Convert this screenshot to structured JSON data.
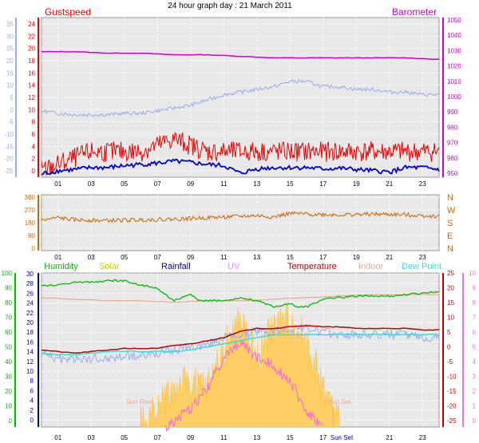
{
  "title": "24 hour graph day : 21 March 2011",
  "colors": {
    "gust": "#ee0000",
    "wind": "#0000cc",
    "baro": "#cc00cc",
    "temp_axis": "#99aaee",
    "dir": "#cc6600",
    "humidity": "#00bb00",
    "solar": "#ffcc55",
    "solar_text": "#cccc00",
    "rain": "#000099",
    "uv": "#ee77cc",
    "uv_text": "#ee88ee",
    "temperature": "#bb0000",
    "indoor": "#f0a890",
    "dewpoint": "#33dddd",
    "panel": "#e8e8e8"
  },
  "chart_data": [
    {
      "type": "line",
      "name": "wind-panel",
      "labels": {
        "left": "Gustspeed",
        "right": "Barometer"
      },
      "x_ticks": [
        "01",
        "03",
        "05",
        "07",
        "09",
        "11",
        "13",
        "15",
        "17",
        "19",
        "21",
        "23"
      ],
      "outer_left_ticks": [
        "35",
        "30",
        "25",
        "20",
        "15",
        "10",
        "5",
        "0",
        "-5",
        "-10",
        "-15",
        "-20",
        "-25"
      ],
      "left_ticks": [
        "24",
        "22",
        "20",
        "18",
        "16",
        "14",
        "12",
        "10",
        "8",
        "6",
        "4",
        "2",
        "0"
      ],
      "right_ticks": [
        "1050",
        "1040",
        "1030",
        "1020",
        "1010",
        "1000",
        "990",
        "980",
        "970",
        "960",
        "950"
      ],
      "ylim_left": [
        0,
        25
      ],
      "ylim_right": [
        947,
        1050
      ],
      "ylim_outer": [
        -25,
        35
      ],
      "series": {
        "barometer": {
          "x": [
            0,
            2,
            4,
            6,
            8,
            10,
            12,
            14,
            16,
            18,
            20,
            22,
            24
          ],
          "y": [
            1028,
            1028,
            1027,
            1027,
            1026,
            1026,
            1025,
            1024,
            1024,
            1024,
            1024,
            1024,
            1023
          ]
        },
        "temperature": {
          "x": [
            0,
            1,
            2,
            3,
            4,
            5,
            6,
            7,
            8,
            9,
            10,
            11,
            12,
            13,
            14,
            15,
            16,
            17,
            18,
            19,
            20,
            21,
            22,
            23,
            24
          ],
          "y": [
            0,
            -1,
            -1.5,
            -1.5,
            -1.5,
            -1,
            -1,
            0,
            1,
            2,
            4,
            6,
            7,
            8,
            9,
            11,
            11,
            9,
            9,
            8,
            8,
            7,
            7,
            6,
            6
          ]
        },
        "gust": {
          "x": [
            0,
            1,
            2,
            3,
            4,
            5,
            6,
            7,
            8,
            9,
            10,
            11,
            12,
            13,
            14,
            15,
            16,
            17,
            18,
            19,
            20,
            21,
            22,
            23,
            24
          ],
          "y": [
            1,
            2,
            3,
            4,
            4,
            4,
            4,
            5,
            6,
            5,
            4,
            4,
            4,
            4,
            4,
            4,
            4,
            4,
            4,
            4,
            4,
            4,
            4,
            4,
            4
          ]
        },
        "wind": {
          "x": [
            0,
            1,
            2,
            3,
            4,
            5,
            6,
            7,
            8,
            9,
            10,
            11,
            12,
            13,
            14,
            15,
            16,
            17,
            18,
            19,
            20,
            21,
            22,
            23,
            24
          ],
          "y": [
            0.5,
            1,
            1.2,
            1.5,
            1.5,
            1.8,
            2,
            2.2,
            2.5,
            2.3,
            2,
            1.8,
            0.6,
            1.3,
            1.5,
            1.5,
            1.5,
            1.3,
            1.4,
            1.2,
            1,
            0.8,
            1.5,
            1.5,
            1.2
          ]
        }
      }
    },
    {
      "type": "line",
      "name": "direction-panel",
      "x_ticks": [
        "01",
        "03",
        "05",
        "07",
        "09",
        "11",
        "13",
        "15",
        "17",
        "19",
        "21",
        "23"
      ],
      "left_ticks": [
        "360",
        "270",
        "180",
        "90",
        "0"
      ],
      "right_labels": [
        "N",
        "W",
        "S",
        "E",
        "N"
      ],
      "ylim": [
        0,
        360
      ],
      "series": {
        "direction": {
          "x": [
            0,
            1,
            2,
            4,
            6,
            8,
            10,
            12,
            13,
            14,
            15,
            16,
            18,
            20,
            22,
            24
          ],
          "y": [
            195,
            215,
            200,
            195,
            200,
            205,
            215,
            225,
            230,
            220,
            245,
            240,
            235,
            240,
            235,
            225
          ]
        }
      }
    },
    {
      "type": "line",
      "name": "weather-panel",
      "legend": [
        "Humidity",
        "Solar",
        "Rainfall",
        "UV",
        "Temperature",
        "Indoor",
        "Dew Point"
      ],
      "x_ticks": [
        "01",
        "03",
        "05",
        "07",
        "09",
        "11",
        "13",
        "15",
        "17",
        "Sun Set",
        "21",
        "23"
      ],
      "humidity_ticks": [
        "100",
        "90",
        "80",
        "70",
        "60",
        "50",
        "40",
        "30",
        "20",
        "10",
        "0"
      ],
      "left_ticks": [
        "30",
        "28",
        "26",
        "24",
        "22",
        "20",
        "18",
        "16",
        "14",
        "12",
        "10",
        "8",
        "6",
        "4",
        "2",
        "0"
      ],
      "right_ticks": [
        "25",
        "20",
        "15",
        "10",
        "5",
        "0",
        "-5",
        "-10",
        "-15",
        "-20",
        "-25"
      ],
      "uv_ticks": [
        "10",
        "9",
        "8",
        "7",
        "6",
        "5",
        "4",
        "3",
        "2",
        "1",
        "0"
      ],
      "annotations": [
        "Sun Rise",
        "Sun Set"
      ],
      "ylim_humidity": [
        0,
        100
      ],
      "ylim_temperature": [
        -25,
        25
      ],
      "series": {
        "humidity": {
          "x": [
            0,
            1,
            2,
            3,
            4,
            5,
            6,
            7,
            8,
            8.5,
            9,
            9.5,
            10,
            11,
            12,
            13,
            13.5,
            14,
            14.5,
            15,
            15.5,
            16,
            17,
            18,
            19,
            20,
            21,
            22,
            23,
            24
          ],
          "y": [
            92,
            92,
            94,
            94,
            95,
            95,
            92,
            90,
            82,
            84,
            86,
            82,
            82,
            82,
            84,
            82,
            80,
            78,
            79,
            80,
            78,
            78,
            83,
            84,
            85,
            85,
            85,
            86,
            87,
            88
          ]
        },
        "indoor": {
          "x": [
            0,
            2,
            4,
            6,
            8,
            10,
            12,
            14,
            16,
            18,
            20,
            22,
            24
          ],
          "y": [
            84,
            83,
            82,
            82,
            81,
            82,
            82,
            83,
            84,
            85,
            86,
            86,
            86
          ]
        },
        "temperature": {
          "x": [
            0,
            1,
            2,
            3,
            4,
            5,
            6,
            7,
            8,
            9,
            10,
            11,
            12,
            13,
            14,
            15,
            16,
            17,
            18,
            19,
            20,
            21,
            22,
            23,
            24
          ],
          "y": [
            0,
            -0.5,
            -1,
            -0.5,
            0,
            0.5,
            0.5,
            0.5,
            1.5,
            2,
            3,
            4,
            6,
            7,
            7,
            7.5,
            8,
            7.5,
            7.5,
            7,
            7,
            7,
            7,
            6.5,
            6.5
          ]
        },
        "dewpoint": {
          "x": [
            0,
            1,
            2,
            3,
            4,
            5,
            6,
            7,
            8,
            9,
            10,
            11,
            12,
            13,
            14,
            15,
            16,
            17,
            18,
            19,
            20,
            21,
            22,
            23,
            24
          ],
          "y": [
            -1,
            -1.5,
            -1.5,
            -1,
            -0.5,
            -0.5,
            -0.5,
            -0.5,
            -0.5,
            0,
            1,
            2,
            3,
            4,
            5,
            5,
            5,
            5,
            5,
            5,
            5,
            5,
            5,
            5,
            5
          ]
        },
        "temperature_outer": {
          "x": [
            0,
            1,
            2,
            3,
            4,
            5,
            6,
            7,
            8,
            9,
            10,
            11,
            12,
            13,
            14,
            15,
            16,
            17,
            18,
            19,
            20,
            21,
            22,
            23,
            24
          ],
          "y": [
            -1,
            -3,
            -3,
            -3,
            -3,
            -2,
            -2,
            -1,
            0,
            1,
            2,
            4,
            5,
            6,
            6,
            7,
            7,
            6,
            5,
            5,
            5,
            5,
            5,
            4,
            4
          ]
        },
        "solar": {
          "x": [
            6,
            7,
            8,
            9,
            10,
            11,
            12,
            13,
            14,
            15,
            16,
            17,
            18
          ],
          "y": [
            0,
            4,
            8,
            9,
            8,
            16,
            22,
            14,
            21,
            22,
            18,
            8,
            0
          ]
        },
        "uv": {
          "x": [
            7.5,
            9,
            10,
            11,
            12,
            13,
            14,
            15,
            16,
            17
          ],
          "y": [
            0,
            1.2,
            2.5,
            4.5,
            5.5,
            4.5,
            4,
            3,
            1,
            0
          ]
        }
      }
    }
  ]
}
